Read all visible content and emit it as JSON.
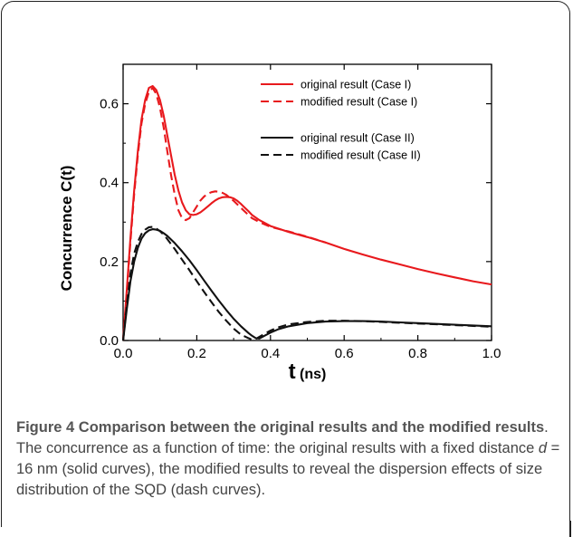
{
  "chart_data": {
    "type": "line",
    "xlabel": "t (ns)",
    "ylabel": "Concurrence C(t)",
    "xlim": [
      0.0,
      1.0
    ],
    "ylim": [
      0.0,
      0.7
    ],
    "xticks": [
      "0.0",
      "0.2",
      "0.4",
      "0.6",
      "0.8",
      "1.0"
    ],
    "yticks": [
      "0.0",
      "0.2",
      "0.4",
      "0.6"
    ],
    "legend_position": "top-right",
    "grid": false,
    "series": [
      {
        "name": "original result (Case I)",
        "color": "#e8191d",
        "style": "solid",
        "x": [
          0,
          0.01,
          0.02,
          0.03,
          0.04,
          0.05,
          0.06,
          0.07,
          0.08,
          0.09,
          0.1,
          0.11,
          0.12,
          0.13,
          0.14,
          0.15,
          0.16,
          0.17,
          0.18,
          0.19,
          0.2,
          0.21,
          0.22,
          0.23,
          0.24,
          0.25,
          0.26,
          0.27,
          0.28,
          0.29,
          0.3,
          0.31,
          0.32,
          0.33,
          0.34,
          0.35,
          0.37,
          0.4,
          0.45,
          0.5,
          0.55,
          0.6,
          0.65,
          0.7,
          0.75,
          0.8,
          0.85,
          0.9,
          0.95,
          1.0
        ],
        "y": [
          0,
          0.13,
          0.26,
          0.38,
          0.48,
          0.56,
          0.61,
          0.64,
          0.645,
          0.635,
          0.61,
          0.57,
          0.52,
          0.47,
          0.42,
          0.38,
          0.35,
          0.33,
          0.32,
          0.318,
          0.32,
          0.325,
          0.332,
          0.34,
          0.348,
          0.355,
          0.36,
          0.363,
          0.364,
          0.363,
          0.36,
          0.354,
          0.346,
          0.337,
          0.328,
          0.318,
          0.305,
          0.29,
          0.275,
          0.262,
          0.248,
          0.232,
          0.218,
          0.205,
          0.193,
          0.181,
          0.17,
          0.16,
          0.15,
          0.142
        ]
      },
      {
        "name": "modified result (Case I)",
        "color": "#e8191d",
        "style": "dash",
        "x": [
          0,
          0.01,
          0.02,
          0.03,
          0.04,
          0.05,
          0.06,
          0.07,
          0.08,
          0.09,
          0.1,
          0.11,
          0.12,
          0.13,
          0.14,
          0.15,
          0.16,
          0.17,
          0.18,
          0.19,
          0.2,
          0.21,
          0.22,
          0.23,
          0.24,
          0.25,
          0.26,
          0.27,
          0.28,
          0.29,
          0.3,
          0.31,
          0.32,
          0.33,
          0.34,
          0.35,
          0.37,
          0.4,
          0.45,
          0.5,
          0.55
        ],
        "y": [
          0,
          0.12,
          0.25,
          0.37,
          0.47,
          0.55,
          0.6,
          0.63,
          0.64,
          0.625,
          0.59,
          0.54,
          0.48,
          0.42,
          0.37,
          0.33,
          0.31,
          0.305,
          0.31,
          0.325,
          0.34,
          0.355,
          0.365,
          0.372,
          0.376,
          0.378,
          0.377,
          0.374,
          0.369,
          0.362,
          0.354,
          0.345,
          0.336,
          0.327,
          0.318,
          0.31,
          0.3,
          0.288,
          0.276,
          0.263,
          0.248
        ]
      },
      {
        "name": "original result (Case II)",
        "color": "#111111",
        "style": "solid",
        "x": [
          0,
          0.01,
          0.02,
          0.03,
          0.04,
          0.05,
          0.06,
          0.07,
          0.08,
          0.09,
          0.1,
          0.11,
          0.12,
          0.14,
          0.16,
          0.18,
          0.2,
          0.22,
          0.24,
          0.26,
          0.28,
          0.3,
          0.32,
          0.34,
          0.35,
          0.36,
          0.37,
          0.38,
          0.4,
          0.42,
          0.45,
          0.5,
          0.55,
          0.6,
          0.65,
          0.7,
          0.75,
          0.8,
          0.85,
          0.9,
          0.95,
          1.0
        ],
        "y": [
          0,
          0.08,
          0.15,
          0.2,
          0.235,
          0.258,
          0.272,
          0.279,
          0.282,
          0.281,
          0.278,
          0.272,
          0.265,
          0.247,
          0.226,
          0.203,
          0.178,
          0.152,
          0.126,
          0.101,
          0.077,
          0.055,
          0.036,
          0.019,
          0.012,
          0.006,
          0.005,
          0.01,
          0.02,
          0.028,
          0.036,
          0.044,
          0.048,
          0.049,
          0.049,
          0.048,
          0.046,
          0.044,
          0.042,
          0.04,
          0.038,
          0.036
        ]
      },
      {
        "name": "modified result (Case II)",
        "color": "#111111",
        "style": "dash",
        "x": [
          0,
          0.01,
          0.02,
          0.03,
          0.04,
          0.05,
          0.06,
          0.07,
          0.08,
          0.09,
          0.1,
          0.11,
          0.12,
          0.14,
          0.16,
          0.18,
          0.2,
          0.22,
          0.24,
          0.26,
          0.28,
          0.3,
          0.32,
          0.34,
          0.35,
          0.36,
          0.38,
          0.4,
          0.42,
          0.45,
          0.5,
          0.55,
          0.6,
          0.65,
          0.7,
          0.75,
          0.8,
          0.85,
          0.9,
          0.95,
          1.0
        ],
        "y": [
          0,
          0.09,
          0.17,
          0.22,
          0.25,
          0.27,
          0.281,
          0.287,
          0.288,
          0.284,
          0.277,
          0.268,
          0.257,
          0.232,
          0.205,
          0.178,
          0.15,
          0.123,
          0.097,
          0.072,
          0.05,
          0.03,
          0.015,
          0.006,
          0.002,
          0.004,
          0.015,
          0.025,
          0.033,
          0.041,
          0.047,
          0.05,
          0.05,
          0.049,
          0.047,
          0.045,
          0.043,
          0.041,
          0.039,
          0.037,
          0.035
        ]
      }
    ]
  },
  "caption": {
    "figure_label": "Figure 4",
    "title": "Comparison between the original results and the modified results",
    "body_1": ". The concurrence as a function of time: the original results with a fixed distance ",
    "var_d": "d",
    "body_2": " = 16 nm (solid curves), the modified results to reveal the dispersion effects of size distribution of the SQD (dash curves)."
  }
}
